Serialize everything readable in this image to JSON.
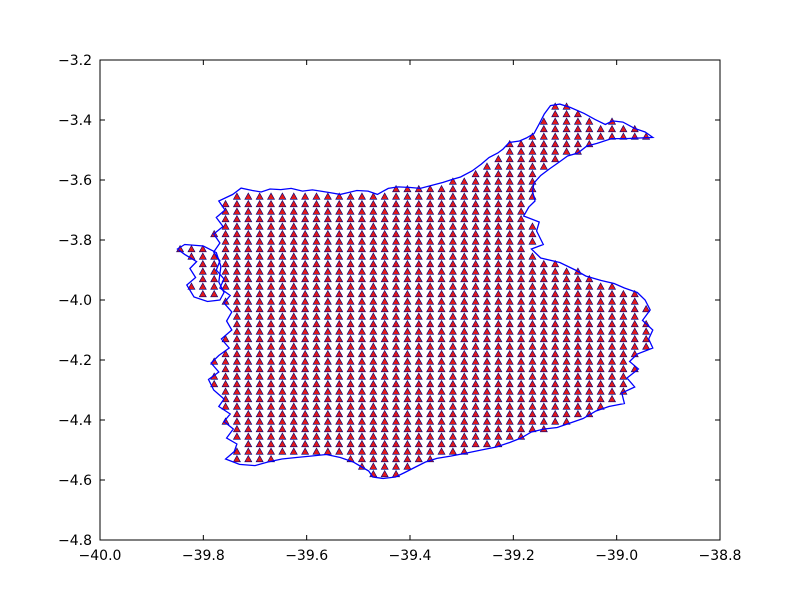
{
  "chart_data": {
    "type": "scatter",
    "title": "",
    "xlabel": "",
    "ylabel": "",
    "xlim": [
      -40.0,
      -38.8
    ],
    "ylim": [
      -4.8,
      -3.2
    ],
    "grid": false,
    "legend": "none",
    "x_ticks": [
      -40.0,
      -39.8,
      -39.6,
      -39.4,
      -39.2,
      -39.0,
      -38.8
    ],
    "y_ticks": [
      -3.2,
      -3.4,
      -3.6,
      -3.8,
      -4.0,
      -4.2,
      -4.4,
      -4.6,
      -4.8
    ],
    "x_tick_labels": [
      "−40.0",
      "−39.8",
      "−39.6",
      "−39.4",
      "−39.2",
      "−39.0",
      "−38.8"
    ],
    "y_tick_labels": [
      "−3.2",
      "−3.4",
      "−3.6",
      "−3.8",
      "−4.0",
      "−4.2",
      "−4.4",
      "−4.6",
      "−4.8"
    ],
    "grid_spacing": {
      "dx": 0.022,
      "dy": 0.025
    },
    "boundary": [
      [
        -39.836,
        -3.815
      ],
      [
        -39.8,
        -3.82
      ],
      [
        -39.775,
        -3.842
      ],
      [
        -39.766,
        -3.888
      ],
      [
        -39.77,
        -3.94
      ],
      [
        -39.76,
        -3.975
      ],
      [
        -39.768,
        -4.0
      ],
      [
        -39.792,
        -4.005
      ],
      [
        -39.818,
        -3.99
      ],
      [
        -39.832,
        -3.95
      ],
      [
        -39.815,
        -3.925
      ],
      [
        -39.826,
        -3.895
      ],
      [
        -39.813,
        -3.872
      ],
      [
        -39.836,
        -3.848
      ],
      [
        -39.85,
        -3.83
      ],
      [
        -39.836,
        -3.815
      ]
    ],
    "region_outline": [
      [
        -39.743,
        -3.648
      ],
      [
        -39.727,
        -3.627
      ],
      [
        -39.705,
        -3.635
      ],
      [
        -39.688,
        -3.64
      ],
      [
        -39.671,
        -3.63
      ],
      [
        -39.65,
        -3.632
      ],
      [
        -39.63,
        -3.628
      ],
      [
        -39.608,
        -3.637
      ],
      [
        -39.589,
        -3.633
      ],
      [
        -39.573,
        -3.637
      ],
      [
        -39.555,
        -3.642
      ],
      [
        -39.535,
        -3.648
      ],
      [
        -39.52,
        -3.642
      ],
      [
        -39.503,
        -3.635
      ],
      [
        -39.481,
        -3.637
      ],
      [
        -39.463,
        -3.648
      ],
      [
        -39.442,
        -3.628
      ],
      [
        -39.423,
        -3.623
      ],
      [
        -39.399,
        -3.625
      ],
      [
        -39.38,
        -3.628
      ],
      [
        -39.358,
        -3.618
      ],
      [
        -39.336,
        -3.608
      ],
      [
        -39.318,
        -3.598
      ],
      [
        -39.302,
        -3.59
      ],
      [
        -39.28,
        -3.57
      ],
      [
        -39.262,
        -3.547
      ],
      [
        -39.247,
        -3.525
      ],
      [
        -39.23,
        -3.51
      ],
      [
        -39.22,
        -3.497
      ],
      [
        -39.208,
        -3.475
      ],
      [
        -39.188,
        -3.47
      ],
      [
        -39.175,
        -3.46
      ],
      [
        -39.16,
        -3.445
      ],
      [
        -39.15,
        -3.413
      ],
      [
        -39.14,
        -3.38
      ],
      [
        -39.128,
        -3.352
      ],
      [
        -39.11,
        -3.347
      ],
      [
        -39.09,
        -3.358
      ],
      [
        -39.063,
        -3.378
      ],
      [
        -39.042,
        -3.398
      ],
      [
        -39.022,
        -3.415
      ],
      [
        -39.008,
        -3.403
      ],
      [
        -38.988,
        -3.407
      ],
      [
        -38.965,
        -3.428
      ],
      [
        -38.945,
        -3.44
      ],
      [
        -38.93,
        -3.458
      ],
      [
        -38.955,
        -3.46
      ],
      [
        -38.983,
        -3.462
      ],
      [
        -39.01,
        -3.462
      ],
      [
        -39.038,
        -3.478
      ],
      [
        -39.058,
        -3.487
      ],
      [
        -39.075,
        -3.51
      ],
      [
        -39.095,
        -3.52
      ],
      [
        -39.111,
        -3.54
      ],
      [
        -39.13,
        -3.563
      ],
      [
        -39.147,
        -3.585
      ],
      [
        -39.16,
        -3.61
      ],
      [
        -39.163,
        -3.637
      ],
      [
        -39.158,
        -3.67
      ],
      [
        -39.17,
        -3.69
      ],
      [
        -39.18,
        -3.72
      ],
      [
        -39.15,
        -3.74
      ],
      [
        -39.155,
        -3.77
      ],
      [
        -39.142,
        -3.815
      ],
      [
        -39.165,
        -3.83
      ],
      [
        -39.147,
        -3.86
      ],
      [
        -39.11,
        -3.875
      ],
      [
        -39.08,
        -3.9
      ],
      [
        -39.06,
        -3.92
      ],
      [
        -39.03,
        -3.935
      ],
      [
        -39.005,
        -3.945
      ],
      [
        -38.985,
        -3.96
      ],
      [
        -38.96,
        -3.975
      ],
      [
        -38.945,
        -4.0
      ],
      [
        -38.935,
        -4.033
      ],
      [
        -38.95,
        -4.068
      ],
      [
        -38.93,
        -4.1
      ],
      [
        -38.938,
        -4.13
      ],
      [
        -38.93,
        -4.16
      ],
      [
        -38.96,
        -4.18
      ],
      [
        -38.975,
        -4.205
      ],
      [
        -38.958,
        -4.23
      ],
      [
        -38.98,
        -4.26
      ],
      [
        -38.965,
        -4.29
      ],
      [
        -38.99,
        -4.31
      ],
      [
        -38.985,
        -4.345
      ],
      [
        -39.015,
        -4.355
      ],
      [
        -39.04,
        -4.37
      ],
      [
        -39.065,
        -4.395
      ],
      [
        -39.09,
        -4.41
      ],
      [
        -39.115,
        -4.425
      ],
      [
        -39.14,
        -4.43
      ],
      [
        -39.165,
        -4.44
      ],
      [
        -39.185,
        -4.46
      ],
      [
        -39.207,
        -4.475
      ],
      [
        -39.233,
        -4.49
      ],
      [
        -39.262,
        -4.5
      ],
      [
        -39.29,
        -4.51
      ],
      [
        -39.32,
        -4.52
      ],
      [
        -39.348,
        -4.528
      ],
      [
        -39.37,
        -4.54
      ],
      [
        -39.393,
        -4.56
      ],
      [
        -39.41,
        -4.575
      ],
      [
        -39.428,
        -4.59
      ],
      [
        -39.452,
        -4.595
      ],
      [
        -39.472,
        -4.59
      ],
      [
        -39.48,
        -4.57
      ],
      [
        -39.495,
        -4.555
      ],
      [
        -39.51,
        -4.54
      ],
      [
        -39.535,
        -4.525
      ],
      [
        -39.562,
        -4.515
      ],
      [
        -39.59,
        -4.52
      ],
      [
        -39.62,
        -4.525
      ],
      [
        -39.648,
        -4.53
      ],
      [
        -39.675,
        -4.54
      ],
      [
        -39.7,
        -4.552
      ],
      [
        -39.73,
        -4.548
      ],
      [
        -39.757,
        -4.53
      ],
      [
        -39.74,
        -4.505
      ],
      [
        -39.735,
        -4.48
      ],
      [
        -39.755,
        -4.46
      ],
      [
        -39.742,
        -4.43
      ],
      [
        -39.76,
        -4.405
      ],
      [
        -39.748,
        -4.38
      ],
      [
        -39.77,
        -4.355
      ],
      [
        -39.76,
        -4.33
      ],
      [
        -39.78,
        -4.3
      ],
      [
        -39.79,
        -4.265
      ],
      [
        -39.77,
        -4.24
      ],
      [
        -39.785,
        -4.21
      ],
      [
        -39.77,
        -4.185
      ],
      [
        -39.75,
        -4.16
      ],
      [
        -39.765,
        -4.13
      ],
      [
        -39.745,
        -4.1
      ],
      [
        -39.755,
        -4.07
      ],
      [
        -39.745,
        -4.04
      ],
      [
        -39.76,
        -4.01
      ],
      [
        -39.748,
        -3.985
      ],
      [
        -39.768,
        -3.96
      ],
      [
        -39.76,
        -3.93
      ],
      [
        -39.775,
        -3.9
      ],
      [
        -39.768,
        -3.87
      ],
      [
        -39.78,
        -3.84
      ],
      [
        -39.768,
        -3.81
      ],
      [
        -39.78,
        -3.78
      ],
      [
        -39.762,
        -3.755
      ],
      [
        -39.775,
        -3.725
      ],
      [
        -39.758,
        -3.7
      ],
      [
        -39.77,
        -3.67
      ],
      [
        -39.743,
        -3.648
      ]
    ]
  }
}
